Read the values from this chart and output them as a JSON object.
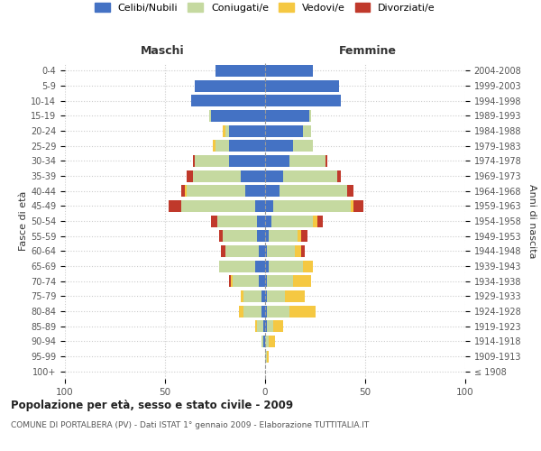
{
  "age_groups": [
    "100+",
    "95-99",
    "90-94",
    "85-89",
    "80-84",
    "75-79",
    "70-74",
    "65-69",
    "60-64",
    "55-59",
    "50-54",
    "45-49",
    "40-44",
    "35-39",
    "30-34",
    "25-29",
    "20-24",
    "15-19",
    "10-14",
    "5-9",
    "0-4"
  ],
  "birth_years": [
    "≤ 1908",
    "1909-1913",
    "1914-1918",
    "1919-1923",
    "1924-1928",
    "1929-1933",
    "1934-1938",
    "1939-1943",
    "1944-1948",
    "1949-1953",
    "1954-1958",
    "1959-1963",
    "1964-1968",
    "1969-1973",
    "1974-1978",
    "1979-1983",
    "1984-1988",
    "1989-1993",
    "1994-1998",
    "1999-2003",
    "2004-2008"
  ],
  "colors": {
    "celibi": "#4472c4",
    "coniugati": "#c5d9a0",
    "vedovi": "#f5c842",
    "divorziati": "#c0392b"
  },
  "maschi": {
    "celibi": [
      0,
      0,
      1,
      1,
      2,
      2,
      3,
      5,
      3,
      4,
      4,
      5,
      10,
      12,
      18,
      18,
      18,
      27,
      37,
      35,
      25
    ],
    "coniugati": [
      0,
      0,
      1,
      3,
      9,
      9,
      13,
      18,
      17,
      17,
      20,
      37,
      29,
      24,
      17,
      7,
      2,
      1,
      0,
      0,
      0
    ],
    "vedovi": [
      0,
      0,
      0,
      1,
      2,
      1,
      1,
      0,
      0,
      0,
      0,
      0,
      1,
      0,
      0,
      1,
      1,
      0,
      0,
      0,
      0
    ],
    "divorziati": [
      0,
      0,
      0,
      0,
      0,
      0,
      1,
      0,
      2,
      2,
      3,
      6,
      2,
      3,
      1,
      0,
      0,
      0,
      0,
      0,
      0
    ]
  },
  "femmine": {
    "celibi": [
      0,
      0,
      0,
      1,
      1,
      1,
      1,
      2,
      1,
      2,
      3,
      4,
      7,
      9,
      12,
      14,
      19,
      22,
      38,
      37,
      24
    ],
    "coniugati": [
      0,
      1,
      2,
      3,
      11,
      9,
      13,
      17,
      14,
      14,
      21,
      39,
      34,
      27,
      18,
      10,
      4,
      1,
      0,
      0,
      0
    ],
    "vedovi": [
      0,
      1,
      3,
      5,
      13,
      10,
      9,
      5,
      3,
      2,
      2,
      1,
      0,
      0,
      0,
      0,
      0,
      0,
      0,
      0,
      0
    ],
    "divorziati": [
      0,
      0,
      0,
      0,
      0,
      0,
      0,
      0,
      2,
      3,
      3,
      5,
      3,
      2,
      1,
      0,
      0,
      0,
      0,
      0,
      0
    ]
  },
  "xlim": 100,
  "title": "Popolazione per età, sesso e stato civile - 2009",
  "subtitle": "COMUNE DI PORTALBERA (PV) - Dati ISTAT 1° gennaio 2009 - Elaborazione TUTTITALIA.IT",
  "ylabel_left": "Fasce di età",
  "ylabel_right": "Anni di nascita",
  "xlabel_left": "Maschi",
  "xlabel_right": "Femmine",
  "legend_labels": [
    "Celibi/Nubili",
    "Coniugati/e",
    "Vedovi/e",
    "Divorziati/e"
  ],
  "background_color": "#ffffff",
  "grid_color": "#cccccc",
  "bar_height": 0.78
}
